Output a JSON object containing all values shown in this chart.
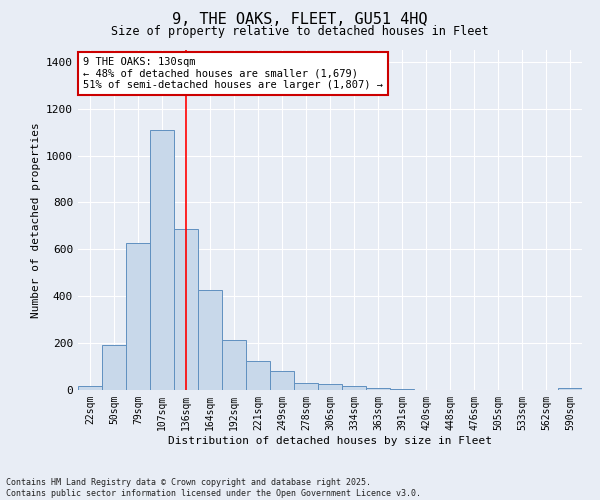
{
  "title": "9, THE OAKS, FLEET, GU51 4HQ",
  "subtitle": "Size of property relative to detached houses in Fleet",
  "xlabel": "Distribution of detached houses by size in Fleet",
  "ylabel": "Number of detached properties",
  "bar_color": "#c8d8ea",
  "bar_edge_color": "#6090c0",
  "background_color": "#e8edf5",
  "grid_color": "#ffffff",
  "categories": [
    "22sqm",
    "50sqm",
    "79sqm",
    "107sqm",
    "136sqm",
    "164sqm",
    "192sqm",
    "221sqm",
    "249sqm",
    "278sqm",
    "306sqm",
    "334sqm",
    "363sqm",
    "391sqm",
    "420sqm",
    "448sqm",
    "476sqm",
    "505sqm",
    "533sqm",
    "562sqm",
    "590sqm"
  ],
  "values": [
    15,
    190,
    625,
    1110,
    685,
    425,
    215,
    125,
    80,
    28,
    25,
    15,
    10,
    5,
    0,
    0,
    0,
    0,
    0,
    0,
    10
  ],
  "red_line_index": 4,
  "annotation_text": "9 THE OAKS: 130sqm\n← 48% of detached houses are smaller (1,679)\n51% of semi-detached houses are larger (1,807) →",
  "annotation_box_color": "#ffffff",
  "annotation_border_color": "#cc0000",
  "footer_text": "Contains HM Land Registry data © Crown copyright and database right 2025.\nContains public sector information licensed under the Open Government Licence v3.0.",
  "ylim": [
    0,
    1450
  ],
  "yticks": [
    0,
    200,
    400,
    600,
    800,
    1000,
    1200,
    1400
  ]
}
